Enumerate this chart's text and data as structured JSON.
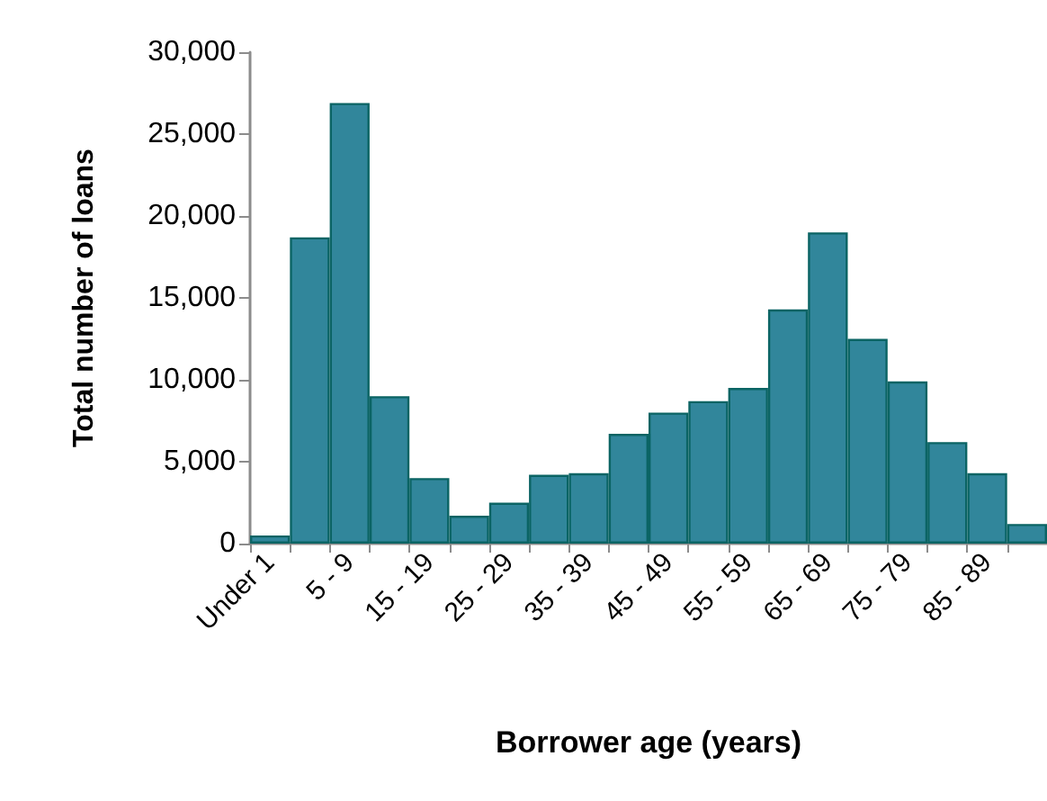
{
  "chart_data": {
    "type": "bar",
    "xlabel": "Borrower age (years)",
    "ylabel": "Total number of loans",
    "categories": [
      "Under 1",
      null,
      "5 - 9",
      null,
      "15 - 19",
      null,
      "25 - 29",
      null,
      "35 - 39",
      null,
      "45 - 49",
      null,
      "55 - 59",
      null,
      "65 - 69",
      null,
      "75 - 79",
      null,
      "85 - 89",
      null
    ],
    "values": [
      500,
      18700,
      26900,
      9000,
      4000,
      1700,
      2500,
      4200,
      4300,
      6700,
      8000,
      8700,
      9500,
      14300,
      19000,
      12500,
      9900,
      6200,
      4300,
      1200
    ],
    "color": "#31869b",
    "ylim": [
      0,
      30000
    ],
    "yticks": [
      0,
      {
        "value": 5000,
        "label": "5,000"
      },
      {
        "value": 10000,
        "label": "10,000"
      },
      {
        "value": 15000,
        "label": "15,000"
      },
      {
        "value": 20000,
        "label": "20,000"
      },
      {
        "value": 25000,
        "label": "25,000"
      },
      {
        "value": 30000,
        "label": "30,000"
      }
    ],
    "grid": false
  }
}
